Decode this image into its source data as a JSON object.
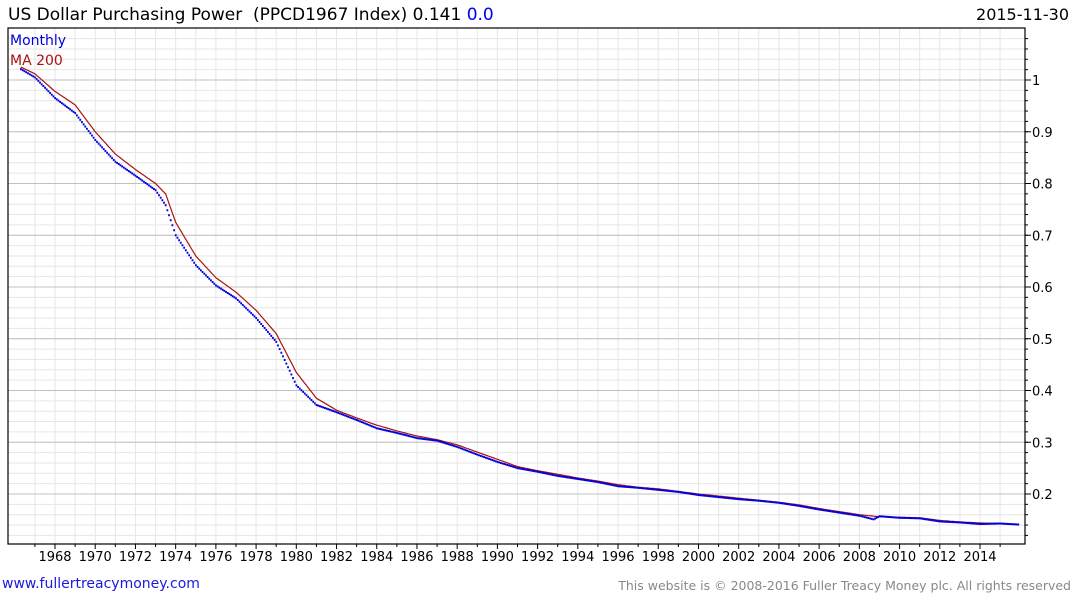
{
  "header": {
    "title": "US Dollar Purchasing Power  (PPCD1967 Index) 0.141",
    "change": "0.0",
    "date": "2015-11-30"
  },
  "footer": {
    "site_link": "www.fullertreacymoney.com",
    "copyright": "This website is © 2008-2016 Fuller Treacy Money plc. All rights reserved"
  },
  "colors": {
    "monthly": "#0000dd",
    "ma": "#aa1111",
    "grid_major": "#c0c0c0",
    "grid_minor": "#e6e6e6"
  },
  "chart_data": {
    "type": "line",
    "title": "US Dollar Purchasing Power (PPCD1967 Index)",
    "legend": [
      "Monthly",
      "MA 200"
    ],
    "legend_position": "top-left",
    "xlim": [
      1965.8,
      2016.3
    ],
    "ylim": [
      0.103,
      1.1
    ],
    "x_ticks": [
      "1968",
      "1970",
      "1972",
      "1974",
      "1976",
      "1978",
      "1980",
      "1982",
      "1984",
      "1986",
      "1988",
      "1990",
      "1992",
      "1994",
      "1996",
      "1998",
      "2000",
      "2002",
      "2004",
      "2006",
      "2008",
      "2010",
      "2012",
      "2014"
    ],
    "y_ticks": [
      "0.2",
      "0.3",
      "0.4",
      "0.5",
      "0.6",
      "0.7",
      "0.8",
      "0.9",
      "1"
    ],
    "series": [
      {
        "name": "Monthly",
        "points": [
          [
            1966.3,
            1.021
          ],
          [
            1967,
            1.005
          ],
          [
            1968,
            0.965
          ],
          [
            1969,
            0.936
          ],
          [
            1970,
            0.884
          ],
          [
            1971,
            0.842
          ],
          [
            1972,
            0.815
          ],
          [
            1973,
            0.787
          ],
          [
            1973.5,
            0.758
          ],
          [
            1974,
            0.7
          ],
          [
            1975,
            0.642
          ],
          [
            1976,
            0.603
          ],
          [
            1977,
            0.578
          ],
          [
            1978,
            0.54
          ],
          [
            1979,
            0.494
          ],
          [
            1980,
            0.41
          ],
          [
            1981,
            0.372
          ],
          [
            1982,
            0.358
          ],
          [
            1983,
            0.343
          ],
          [
            1984,
            0.327
          ],
          [
            1985,
            0.318
          ],
          [
            1986,
            0.308
          ],
          [
            1987,
            0.303
          ],
          [
            1988,
            0.291
          ],
          [
            1989,
            0.276
          ],
          [
            1990,
            0.262
          ],
          [
            1991,
            0.25
          ],
          [
            1992,
            0.243
          ],
          [
            1993,
            0.235
          ],
          [
            1994,
            0.229
          ],
          [
            1995,
            0.223
          ],
          [
            1996,
            0.215
          ],
          [
            1997,
            0.212
          ],
          [
            1998,
            0.208
          ],
          [
            1999,
            0.204
          ],
          [
            2000,
            0.198
          ],
          [
            2001,
            0.194
          ],
          [
            2002,
            0.19
          ],
          [
            2003,
            0.187
          ],
          [
            2004,
            0.183
          ],
          [
            2005,
            0.177
          ],
          [
            2006,
            0.17
          ],
          [
            2007,
            0.164
          ],
          [
            2008,
            0.158
          ],
          [
            2008.7,
            0.151
          ],
          [
            2009,
            0.157
          ],
          [
            2010,
            0.154
          ],
          [
            2011,
            0.153
          ],
          [
            2012,
            0.147
          ],
          [
            2013,
            0.145
          ],
          [
            2014,
            0.142
          ],
          [
            2015,
            0.143
          ],
          [
            2015.9,
            0.141
          ]
        ]
      },
      {
        "name": "MA 200",
        "points": [
          [
            1966.3,
            1.025
          ],
          [
            1967,
            1.012
          ],
          [
            1968,
            0.978
          ],
          [
            1969,
            0.952
          ],
          [
            1970,
            0.9
          ],
          [
            1971,
            0.857
          ],
          [
            1972,
            0.827
          ],
          [
            1973,
            0.8
          ],
          [
            1973.5,
            0.78
          ],
          [
            1974,
            0.725
          ],
          [
            1975,
            0.66
          ],
          [
            1976,
            0.618
          ],
          [
            1977,
            0.59
          ],
          [
            1978,
            0.555
          ],
          [
            1979,
            0.51
          ],
          [
            1980,
            0.435
          ],
          [
            1981,
            0.385
          ],
          [
            1982,
            0.362
          ],
          [
            1983,
            0.347
          ],
          [
            1984,
            0.333
          ],
          [
            1985,
            0.322
          ],
          [
            1986,
            0.312
          ],
          [
            1987,
            0.305
          ],
          [
            1988,
            0.295
          ],
          [
            1989,
            0.281
          ],
          [
            1990,
            0.267
          ],
          [
            1991,
            0.253
          ],
          [
            1992,
            0.245
          ],
          [
            1993,
            0.238
          ],
          [
            1994,
            0.231
          ],
          [
            1995,
            0.225
          ],
          [
            1996,
            0.218
          ],
          [
            1997,
            0.213
          ],
          [
            1998,
            0.21
          ],
          [
            1999,
            0.205
          ],
          [
            2000,
            0.2
          ],
          [
            2001,
            0.196
          ],
          [
            2002,
            0.192
          ],
          [
            2003,
            0.188
          ],
          [
            2004,
            0.184
          ],
          [
            2005,
            0.179
          ],
          [
            2006,
            0.172
          ],
          [
            2007,
            0.166
          ],
          [
            2008,
            0.16
          ],
          [
            2009,
            0.156
          ],
          [
            2010,
            0.155
          ],
          [
            2011,
            0.154
          ],
          [
            2012,
            0.149
          ],
          [
            2013,
            0.146
          ],
          [
            2014,
            0.144
          ],
          [
            2015,
            0.143
          ],
          [
            2015.9,
            0.141
          ]
        ]
      }
    ]
  }
}
